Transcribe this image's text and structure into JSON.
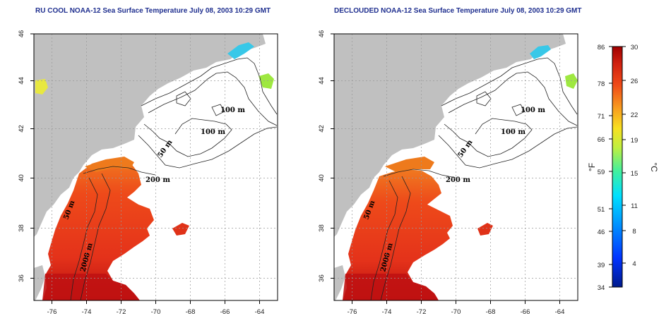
{
  "panels": [
    {
      "id": "left",
      "title": "RU COOL NOAA-12 Sea Surface Temperature July 08, 2003 10:29 GMT",
      "isobath_labels": [
        "100 m",
        "100 m",
        "50 m",
        "200 m",
        "50 m",
        "2000 m"
      ]
    },
    {
      "id": "right",
      "title": "DECLOUDED NOAA-12 Sea Surface Temperature July 08, 2003 10:29 GMT",
      "isobath_labels": [
        "100 m",
        "100 m",
        "50 m",
        "200 m",
        "50 m",
        "2000 m"
      ]
    }
  ],
  "axes": {
    "lon_ticks": [
      "-76",
      "-74",
      "-72",
      "-70",
      "-68",
      "-66",
      "-64"
    ],
    "lat_ticks": [
      "36",
      "38",
      "40",
      "42",
      "44",
      "46"
    ]
  },
  "colorbar": {
    "fahrenheit_ticks": [
      "86",
      "78",
      "71",
      "66",
      "59",
      "51",
      "46",
      "39",
      "34"
    ],
    "celsius_ticks": [
      "30",
      "26",
      "22",
      "19",
      "15",
      "11",
      "8",
      "4"
    ],
    "fahrenheit_unit": "°F",
    "celsius_unit": "°C"
  },
  "colors": {
    "land": "#c0c0c0",
    "ocean": "#ffffff",
    "sst_warm": "#e8321b",
    "sst_hot": "#c81414",
    "title": "#1f2f8f"
  }
}
